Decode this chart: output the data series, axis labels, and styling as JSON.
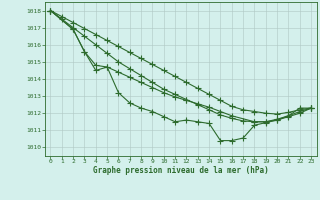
{
  "xlabel": "Graphe pression niveau de la mer (hPa)",
  "bg_color": "#d4f0ec",
  "line_color": "#2d6b2d",
  "ylim": [
    1009.5,
    1018.5
  ],
  "xlim": [
    -0.5,
    23.5
  ],
  "yticks": [
    1010,
    1011,
    1012,
    1013,
    1014,
    1015,
    1016,
    1017,
    1018
  ],
  "xticks": [
    0,
    1,
    2,
    3,
    4,
    5,
    6,
    7,
    8,
    9,
    10,
    11,
    12,
    13,
    14,
    15,
    16,
    17,
    18,
    19,
    20,
    21,
    22,
    23
  ],
  "lines": [
    {
      "x": [
        0,
        1,
        2,
        3,
        4,
        5,
        6,
        7,
        8,
        9,
        10,
        11,
        12,
        13,
        14,
        15,
        16,
        17,
        18,
        19,
        20,
        21,
        22,
        23
      ],
      "y": [
        1018.0,
        1017.65,
        1017.3,
        1016.95,
        1016.6,
        1016.25,
        1015.9,
        1015.55,
        1015.2,
        1014.85,
        1014.5,
        1014.15,
        1013.8,
        1013.45,
        1013.1,
        1012.75,
        1012.4,
        1012.2,
        1012.1,
        1012.0,
        1011.95,
        1012.05,
        1012.2,
        1012.3
      ]
    },
    {
      "x": [
        0,
        1,
        2,
        3,
        4,
        5,
        6,
        7,
        8,
        9,
        10,
        11,
        12,
        13,
        14,
        15,
        16,
        17,
        18,
        19,
        20,
        21,
        22,
        23
      ],
      "y": [
        1018.0,
        1017.5,
        1017.0,
        1016.5,
        1016.0,
        1015.5,
        1015.0,
        1014.6,
        1014.2,
        1013.8,
        1013.4,
        1013.1,
        1012.8,
        1012.5,
        1012.2,
        1011.9,
        1011.7,
        1011.55,
        1011.5,
        1011.5,
        1011.6,
        1011.8,
        1012.0,
        1012.3
      ]
    },
    {
      "x": [
        0,
        2,
        3,
        4,
        5,
        6,
        7,
        8,
        9,
        10,
        11,
        12,
        13,
        14,
        15,
        16,
        17,
        18,
        19,
        20,
        21,
        22,
        23
      ],
      "y": [
        1018.0,
        1016.9,
        1015.6,
        1014.5,
        1014.7,
        1013.2,
        1012.6,
        1012.3,
        1012.1,
        1011.8,
        1011.5,
        1011.6,
        1011.5,
        1011.4,
        1010.4,
        1010.4,
        1010.55,
        1011.3,
        1011.45,
        1011.6,
        1011.85,
        1012.3,
        1012.3
      ]
    },
    {
      "x": [
        0,
        2,
        3,
        4,
        5,
        6,
        7,
        8,
        9,
        10,
        11,
        12,
        13,
        14,
        15,
        16,
        18,
        19,
        20,
        21,
        22,
        23
      ],
      "y": [
        1018.0,
        1016.9,
        1015.6,
        1014.8,
        1014.7,
        1014.4,
        1014.1,
        1013.8,
        1013.5,
        1013.2,
        1012.95,
        1012.75,
        1012.55,
        1012.35,
        1012.1,
        1011.85,
        1011.5,
        1011.5,
        1011.65,
        1011.85,
        1012.1,
        1012.3
      ]
    }
  ]
}
